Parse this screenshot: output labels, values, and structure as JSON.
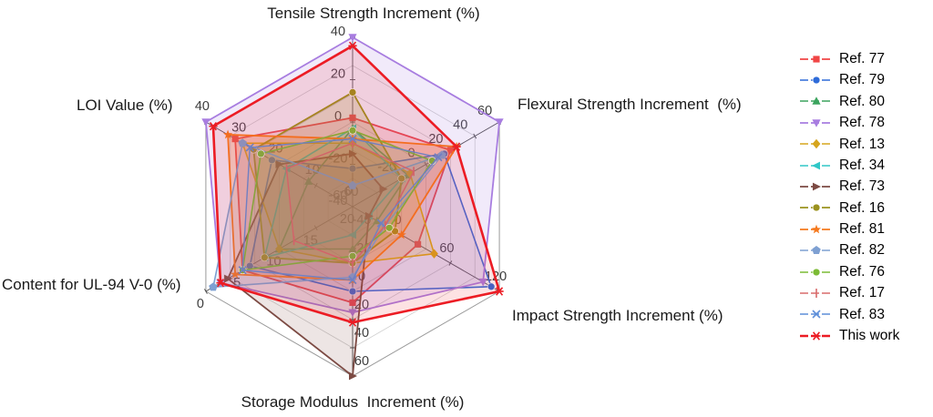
{
  "chart_data": {
    "type": "radar",
    "legend_position": "right",
    "grid": true,
    "axes": [
      {
        "label": "Tensile Strength Increment (%)",
        "center_value": -40,
        "outer_value": 40,
        "ticks": [
          40,
          20,
          0,
          -20,
          -40
        ]
      },
      {
        "label": "Flexural Strength Increment  (%)",
        "center_value": -60,
        "outer_value": 60,
        "ticks": [
          60,
          40,
          20,
          0,
          -20,
          -60
        ]
      },
      {
        "label": "Impact Strength Increment (%)",
        "center_value": -60,
        "outer_value": 120,
        "ticks": [
          120,
          60,
          0,
          -60
        ]
      },
      {
        "label": "Storage Modulus  Increment (%)",
        "center_value": -60,
        "outer_value": 60,
        "ticks": [
          60,
          40,
          20,
          0,
          -20,
          -40
        ]
      },
      {
        "label": "Content for UL-94 V-0 (%)",
        "center_value": 20,
        "outer_value": 0,
        "ticks": [
          0,
          5,
          10,
          15,
          20
        ]
      },
      {
        "label": "LOI Value (%)",
        "center_value": 0,
        "outer_value": 40,
        "ticks": [
          40,
          30,
          20,
          10,
          0
        ]
      }
    ],
    "series": [
      {
        "name": "Ref. 77",
        "color": "#f04545",
        "marker": "square",
        "line_width": 1.8,
        "fill_opacity": 0.16,
        "values": [
          2,
          20,
          20,
          8,
          5,
          32
        ]
      },
      {
        "name": "Ref. 79",
        "color": "#2e6bd9",
        "marker": "circle",
        "line_width": 1.6,
        "fill_opacity": 0.1,
        "values": [
          -22,
          15,
          110,
          0,
          6,
          22
        ]
      },
      {
        "name": "Ref. 80",
        "color": "#3ba45e",
        "marker": "triangle-up",
        "line_width": 1.6,
        "fill_opacity": 0.1,
        "values": [
          -3,
          -15,
          -30,
          -30,
          10,
          12
        ]
      },
      {
        "name": "Ref. 78",
        "color": "#a87de0",
        "marker": "triangle-down",
        "line_width": 1.8,
        "fill_opacity": 0.16,
        "values": [
          40,
          60,
          100,
          15,
          2,
          40
        ]
      },
      {
        "name": "Ref. 13",
        "color": "#d6a51d",
        "marker": "diamond",
        "line_width": 1.6,
        "fill_opacity": 0.18,
        "values": [
          -10,
          -13,
          40,
          -20,
          10,
          30
        ]
      },
      {
        "name": "Ref. 34",
        "color": "#30c7c7",
        "marker": "triangle-left",
        "line_width": 1.6,
        "fill_opacity": 0.1,
        "values": [
          -3,
          -20,
          -40,
          -40,
          8,
          18
        ]
      },
      {
        "name": "Ref. 73",
        "color": "#7c4a43",
        "marker": "triangle-right",
        "line_width": 1.8,
        "fill_opacity": 0.14,
        "values": [
          -15,
          -35,
          -40,
          60,
          3,
          20
        ]
      },
      {
        "name": "Ref. 16",
        "color": "#9b921f",
        "marker": "circle",
        "line_width": 1.8,
        "fill_opacity": 0.2,
        "values": [
          14,
          -20,
          -8,
          -20,
          8,
          27
        ]
      },
      {
        "name": "Ref. 81",
        "color": "#f5791e",
        "marker": "star",
        "line_width": 1.8,
        "fill_opacity": 0.22,
        "values": [
          -8,
          25,
          0,
          -8,
          4,
          34
        ]
      },
      {
        "name": "Ref. 82",
        "color": "#7ea0d2",
        "marker": "pentagon",
        "line_width": 1.6,
        "fill_opacity": 0.12,
        "values": [
          -30,
          13,
          -20,
          -10,
          1,
          30
        ]
      },
      {
        "name": "Ref. 76",
        "color": "#7cbb35",
        "marker": "circle",
        "line_width": 1.6,
        "fill_opacity": 0.12,
        "values": [
          -4,
          5,
          -15,
          -25,
          5,
          25
        ]
      },
      {
        "name": "Ref. 17",
        "color": "#d96b6b",
        "marker": "vbar",
        "line_width": 1.4,
        "fill_opacity": 0.08,
        "values": [
          -10,
          -10,
          -20,
          -20,
          12,
          18
        ]
      },
      {
        "name": "Ref. 83",
        "color": "#5d8ed9",
        "marker": "x",
        "line_width": 1.4,
        "fill_opacity": 0.08,
        "values": [
          -8,
          10,
          -25,
          -8,
          5,
          28
        ]
      },
      {
        "name": "This work",
        "color": "#ec1c24",
        "marker": "asterisk",
        "line_width": 2.6,
        "fill_opacity": 0.13,
        "values": [
          36,
          25,
          120,
          22,
          2,
          38
        ]
      }
    ]
  }
}
